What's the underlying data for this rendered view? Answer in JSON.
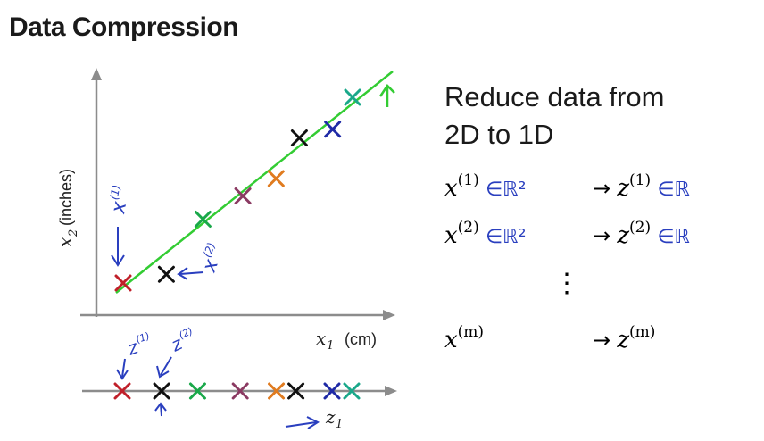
{
  "slide": {
    "title": "Data Compression"
  },
  "plot2d": {
    "y_label_var": "x",
    "y_label_sub": "2",
    "y_label_unit": "(inches)",
    "x_label_var": "x",
    "x_label_sub": "1",
    "x_label_unit": "(cm)",
    "annot_x1": "x",
    "annot_x1_sup": "(1)",
    "annot_x2": "x",
    "annot_x2_sup": "(2)",
    "points": [
      {
        "x": 1.0,
        "y": 1.0,
        "color": "#c0202a"
      },
      {
        "x": 2.3,
        "y": 1.3,
        "color": "#111111"
      },
      {
        "x": 3.4,
        "y": 3.2,
        "color": "#1aa84a"
      },
      {
        "x": 4.6,
        "y": 4.0,
        "color": "#8b3a62"
      },
      {
        "x": 5.6,
        "y": 4.6,
        "color": "#e07b1f"
      },
      {
        "x": 6.3,
        "y": 6.0,
        "color": "#111111"
      },
      {
        "x": 7.3,
        "y": 6.3,
        "color": "#1f2aa6"
      },
      {
        "x": 7.9,
        "y": 7.4,
        "color": "#1aa88a"
      }
    ]
  },
  "plot1d": {
    "axis_var": "z",
    "axis_sub": "1",
    "annot_z1": "z",
    "annot_z1_sup": "(1)",
    "annot_z2": "z",
    "annot_z2_sup": "(2)",
    "points": [
      {
        "z": 0.0,
        "color": "#c0202a"
      },
      {
        "z": 1.2,
        "color": "#111111"
      },
      {
        "z": 2.3,
        "color": "#1aa84a"
      },
      {
        "z": 3.6,
        "color": "#8b3a62"
      },
      {
        "z": 4.7,
        "color": "#e07b1f"
      },
      {
        "z": 5.3,
        "color": "#111111"
      },
      {
        "z": 6.4,
        "color": "#1f2aa6"
      },
      {
        "z": 7.0,
        "color": "#1aa88a"
      }
    ]
  },
  "reduce": {
    "line1": "Reduce data from",
    "line2": "2D to 1D",
    "rows": [
      {
        "x": "x",
        "x_sup": "(1)",
        "x_space": "∈ℝ²",
        "arrow": "→",
        "z": "z",
        "z_sup": "(1)",
        "z_space": "∈ℝ"
      },
      {
        "x": "x",
        "x_sup": "(2)",
        "x_space": "∈ℝ²",
        "arrow": "→",
        "z": "z",
        "z_sup": "(2)",
        "z_space": "∈ℝ"
      },
      {
        "x": "x",
        "x_sup": "(m)",
        "x_space": "",
        "arrow": "→",
        "z": "z",
        "z_sup": "(m)",
        "z_space": ""
      }
    ],
    "ellipsis": "⋮"
  },
  "colors": {
    "fit_line": "#33cc33",
    "axis": "#8c8c8c",
    "annotation": "#2a3fbf"
  }
}
